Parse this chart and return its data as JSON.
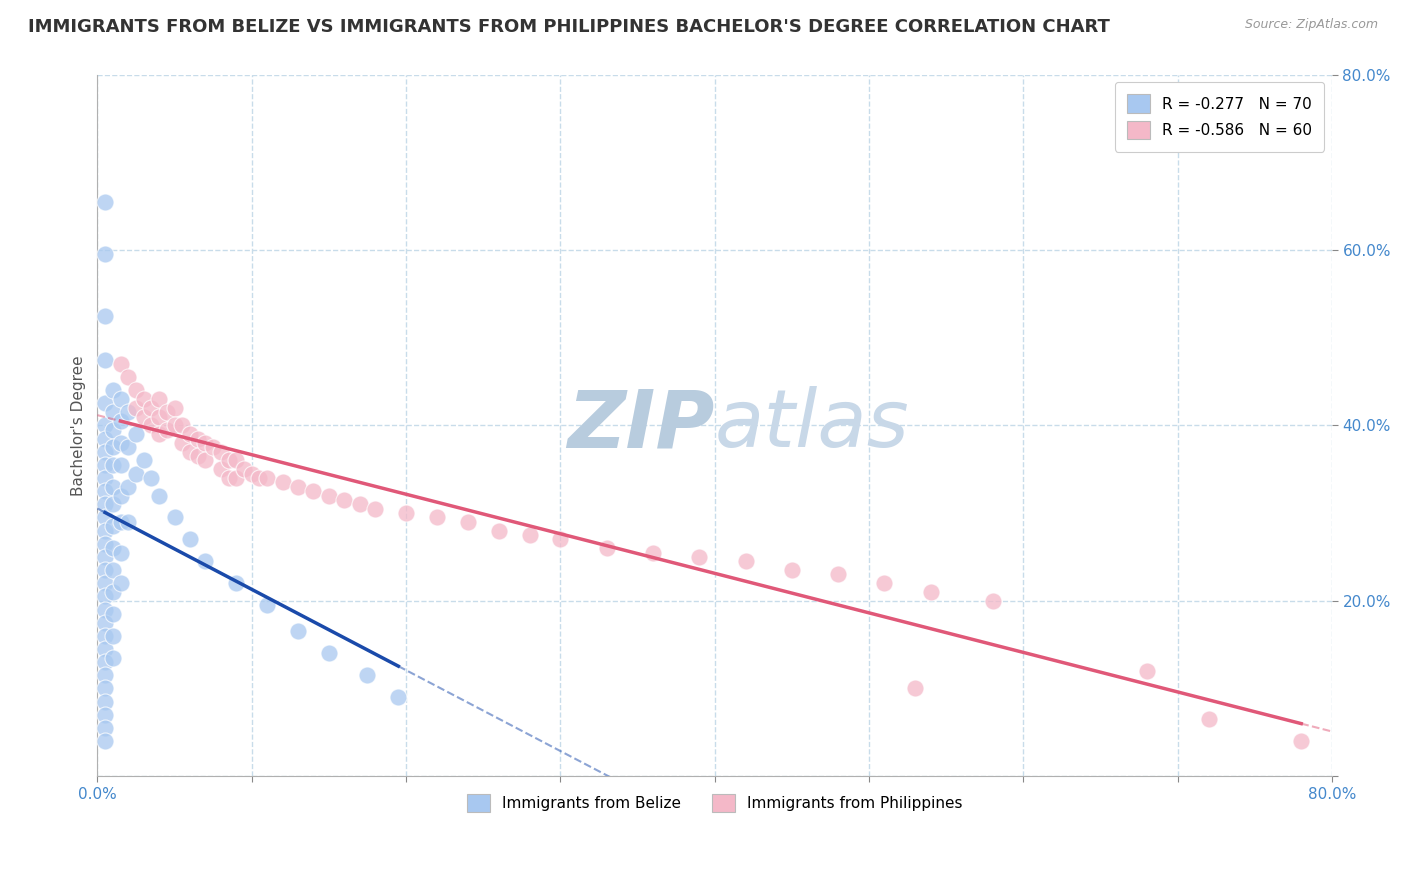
{
  "title": "IMMIGRANTS FROM BELIZE VS IMMIGRANTS FROM PHILIPPINES BACHELOR'S DEGREE CORRELATION CHART",
  "source": "Source: ZipAtlas.com",
  "ylabel_label": "Bachelor's Degree",
  "legend_entries": [
    {
      "label": "R = -0.277   N = 70",
      "color": "#a8c8f0"
    },
    {
      "label": "R = -0.586   N = 60",
      "color": "#f4b8c8"
    }
  ],
  "legend_bottom": [
    "Immigrants from Belize",
    "Immigrants from Philippines"
  ],
  "belize_color": "#a8c8f0",
  "philippines_color": "#f4b8c8",
  "belize_line_color": "#1a4aaa",
  "philippines_line_color": "#e05878",
  "watermark_top": "ZIP",
  "watermark_bottom": "atlas",
  "watermark_color": "#ccdaee",
  "belize_scatter": [
    [
      0.005,
      0.655
    ],
    [
      0.005,
      0.595
    ],
    [
      0.005,
      0.525
    ],
    [
      0.005,
      0.475
    ],
    [
      0.005,
      0.425
    ],
    [
      0.005,
      0.4
    ],
    [
      0.005,
      0.385
    ],
    [
      0.005,
      0.37
    ],
    [
      0.005,
      0.355
    ],
    [
      0.005,
      0.34
    ],
    [
      0.005,
      0.325
    ],
    [
      0.005,
      0.31
    ],
    [
      0.005,
      0.295
    ],
    [
      0.005,
      0.28
    ],
    [
      0.005,
      0.265
    ],
    [
      0.005,
      0.25
    ],
    [
      0.005,
      0.235
    ],
    [
      0.005,
      0.22
    ],
    [
      0.005,
      0.205
    ],
    [
      0.005,
      0.19
    ],
    [
      0.005,
      0.175
    ],
    [
      0.005,
      0.16
    ],
    [
      0.005,
      0.145
    ],
    [
      0.005,
      0.13
    ],
    [
      0.005,
      0.115
    ],
    [
      0.005,
      0.1
    ],
    [
      0.005,
      0.085
    ],
    [
      0.005,
      0.07
    ],
    [
      0.005,
      0.055
    ],
    [
      0.005,
      0.04
    ],
    [
      0.01,
      0.44
    ],
    [
      0.01,
      0.415
    ],
    [
      0.01,
      0.395
    ],
    [
      0.01,
      0.375
    ],
    [
      0.01,
      0.355
    ],
    [
      0.01,
      0.33
    ],
    [
      0.01,
      0.31
    ],
    [
      0.01,
      0.285
    ],
    [
      0.01,
      0.26
    ],
    [
      0.01,
      0.235
    ],
    [
      0.01,
      0.21
    ],
    [
      0.01,
      0.185
    ],
    [
      0.01,
      0.16
    ],
    [
      0.01,
      0.135
    ],
    [
      0.015,
      0.43
    ],
    [
      0.015,
      0.405
    ],
    [
      0.015,
      0.38
    ],
    [
      0.015,
      0.355
    ],
    [
      0.015,
      0.32
    ],
    [
      0.015,
      0.29
    ],
    [
      0.015,
      0.255
    ],
    [
      0.015,
      0.22
    ],
    [
      0.02,
      0.415
    ],
    [
      0.02,
      0.375
    ],
    [
      0.02,
      0.33
    ],
    [
      0.02,
      0.29
    ],
    [
      0.025,
      0.39
    ],
    [
      0.025,
      0.345
    ],
    [
      0.03,
      0.36
    ],
    [
      0.035,
      0.34
    ],
    [
      0.04,
      0.32
    ],
    [
      0.05,
      0.295
    ],
    [
      0.06,
      0.27
    ],
    [
      0.07,
      0.245
    ],
    [
      0.09,
      0.22
    ],
    [
      0.11,
      0.195
    ],
    [
      0.13,
      0.165
    ],
    [
      0.15,
      0.14
    ],
    [
      0.175,
      0.115
    ],
    [
      0.195,
      0.09
    ]
  ],
  "philippines_scatter": [
    [
      0.015,
      0.47
    ],
    [
      0.02,
      0.455
    ],
    [
      0.025,
      0.44
    ],
    [
      0.025,
      0.42
    ],
    [
      0.03,
      0.43
    ],
    [
      0.03,
      0.41
    ],
    [
      0.035,
      0.42
    ],
    [
      0.035,
      0.4
    ],
    [
      0.04,
      0.43
    ],
    [
      0.04,
      0.41
    ],
    [
      0.04,
      0.39
    ],
    [
      0.045,
      0.415
    ],
    [
      0.045,
      0.395
    ],
    [
      0.05,
      0.42
    ],
    [
      0.05,
      0.4
    ],
    [
      0.055,
      0.4
    ],
    [
      0.055,
      0.38
    ],
    [
      0.06,
      0.39
    ],
    [
      0.06,
      0.37
    ],
    [
      0.065,
      0.385
    ],
    [
      0.065,
      0.365
    ],
    [
      0.07,
      0.38
    ],
    [
      0.07,
      0.36
    ],
    [
      0.075,
      0.375
    ],
    [
      0.08,
      0.37
    ],
    [
      0.08,
      0.35
    ],
    [
      0.085,
      0.36
    ],
    [
      0.085,
      0.34
    ],
    [
      0.09,
      0.36
    ],
    [
      0.09,
      0.34
    ],
    [
      0.095,
      0.35
    ],
    [
      0.1,
      0.345
    ],
    [
      0.105,
      0.34
    ],
    [
      0.11,
      0.34
    ],
    [
      0.12,
      0.335
    ],
    [
      0.13,
      0.33
    ],
    [
      0.14,
      0.325
    ],
    [
      0.15,
      0.32
    ],
    [
      0.16,
      0.315
    ],
    [
      0.17,
      0.31
    ],
    [
      0.18,
      0.305
    ],
    [
      0.2,
      0.3
    ],
    [
      0.22,
      0.295
    ],
    [
      0.24,
      0.29
    ],
    [
      0.26,
      0.28
    ],
    [
      0.28,
      0.275
    ],
    [
      0.3,
      0.27
    ],
    [
      0.33,
      0.26
    ],
    [
      0.36,
      0.255
    ],
    [
      0.39,
      0.25
    ],
    [
      0.42,
      0.245
    ],
    [
      0.45,
      0.235
    ],
    [
      0.48,
      0.23
    ],
    [
      0.51,
      0.22
    ],
    [
      0.54,
      0.21
    ],
    [
      0.58,
      0.2
    ],
    [
      0.53,
      0.1
    ],
    [
      0.68,
      0.12
    ],
    [
      0.72,
      0.065
    ],
    [
      0.78,
      0.04
    ]
  ],
  "xlim": [
    0.0,
    0.8
  ],
  "ylim": [
    0.0,
    0.8
  ],
  "x_ticks": [
    0.0,
    0.1,
    0.2,
    0.3,
    0.4,
    0.5,
    0.6,
    0.7,
    0.8
  ],
  "y_ticks": [
    0.0,
    0.2,
    0.4,
    0.6,
    0.8
  ],
  "grid_color": "#c8dcea",
  "background_color": "#ffffff",
  "tick_color": "#4488cc",
  "title_fontsize": 13,
  "axis_label_fontsize": 11
}
